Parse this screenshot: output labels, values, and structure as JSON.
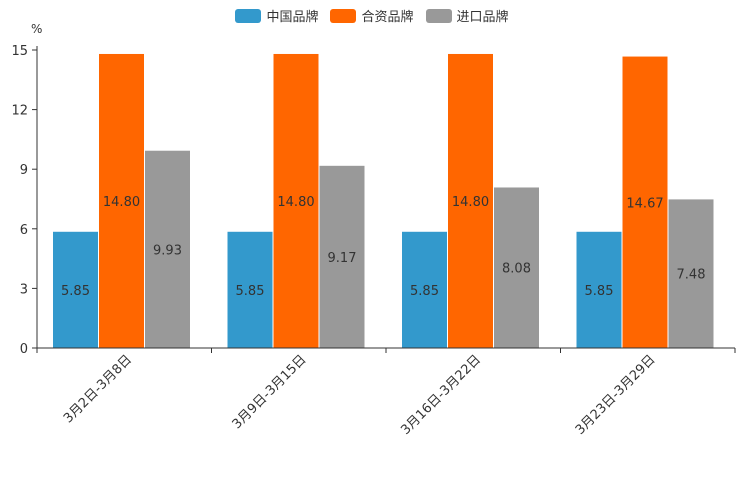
{
  "chart_data": {
    "type": "bar",
    "unit_label": "%",
    "categories": [
      "3月2日-3月8日",
      "3月9日-3月15日",
      "3月16日-3月22日",
      "3月23日-3月29日"
    ],
    "series": [
      {
        "name": "中国品牌",
        "color": "#3399cc",
        "values": [
          5.85,
          5.85,
          5.85,
          5.85
        ],
        "labels": [
          "5.85",
          "5.85",
          "5.85",
          "5.85"
        ]
      },
      {
        "name": "合资品牌",
        "color": "#ff6600",
        "values": [
          14.8,
          14.8,
          14.8,
          14.67
        ],
        "labels": [
          "14.80",
          "14.80",
          "14.80",
          "14.67"
        ]
      },
      {
        "name": "进口品牌",
        "color": "#999999",
        "values": [
          9.93,
          9.17,
          8.08,
          7.48
        ],
        "labels": [
          "9.93",
          "9.17",
          "8.08",
          "7.48"
        ]
      }
    ],
    "ylim": [
      0,
      15
    ],
    "yticks": [
      0,
      3,
      6,
      9,
      12,
      15
    ],
    "legend_position": "top-center"
  }
}
